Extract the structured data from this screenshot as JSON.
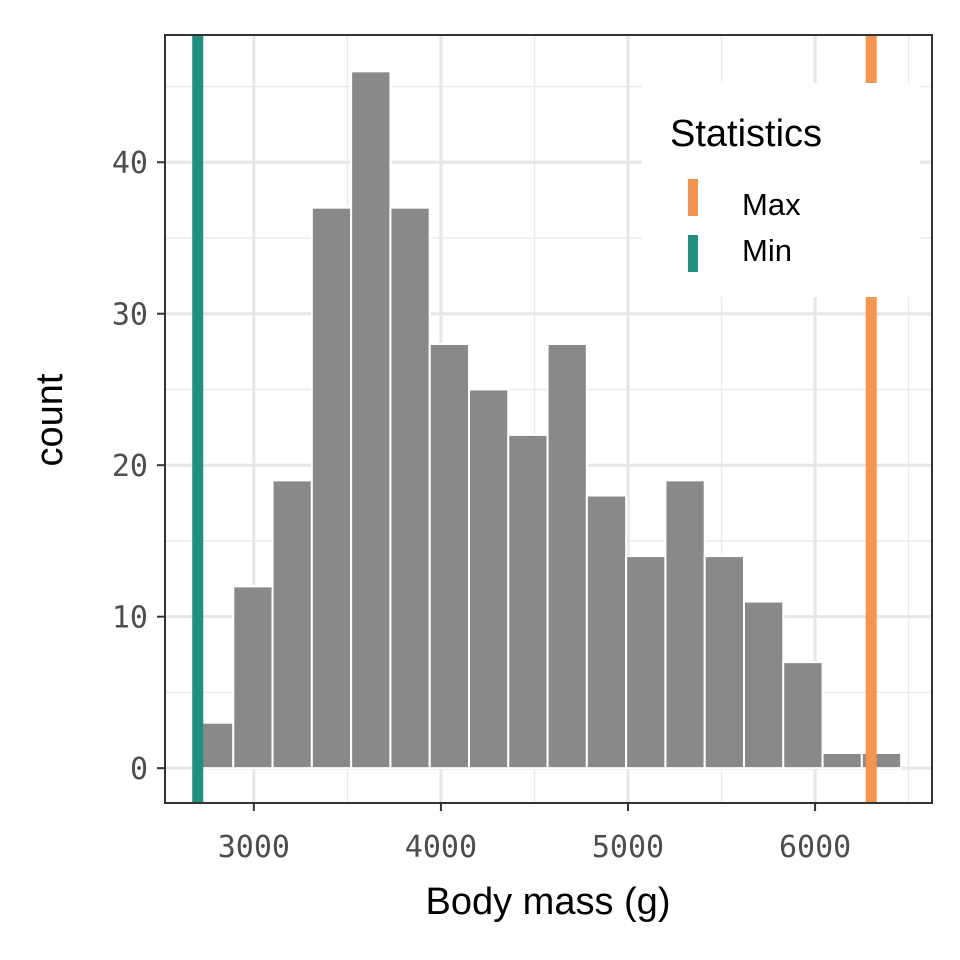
{
  "chart_data": {
    "type": "bar",
    "subtype": "histogram",
    "xlabel": "Body mass (g)",
    "ylabel": "count",
    "xlim": [
      2525,
      6625
    ],
    "ylim": [
      -2.3,
      48.4
    ],
    "xticks": [
      3000,
      4000,
      5000,
      6000
    ],
    "yticks": [
      0,
      10,
      20,
      30,
      40
    ],
    "grid": true,
    "bar_color": "#898989",
    "bins": [
      {
        "x0": 2680,
        "x1": 2890,
        "count": 3
      },
      {
        "x0": 2890,
        "x1": 3100,
        "count": 12
      },
      {
        "x0": 3100,
        "x1": 3310,
        "count": 19
      },
      {
        "x0": 3310,
        "x1": 3520,
        "count": 37
      },
      {
        "x0": 3520,
        "x1": 3730,
        "count": 46
      },
      {
        "x0": 3730,
        "x1": 3940,
        "count": 37
      },
      {
        "x0": 3940,
        "x1": 4150,
        "count": 28
      },
      {
        "x0": 4150,
        "x1": 4360,
        "count": 25
      },
      {
        "x0": 4360,
        "x1": 4570,
        "count": 22
      },
      {
        "x0": 4570,
        "x1": 4780,
        "count": 28
      },
      {
        "x0": 4780,
        "x1": 4990,
        "count": 18
      },
      {
        "x0": 4990,
        "x1": 5200,
        "count": 14
      },
      {
        "x0": 5200,
        "x1": 5410,
        "count": 19
      },
      {
        "x0": 5410,
        "x1": 5620,
        "count": 14
      },
      {
        "x0": 5620,
        "x1": 5830,
        "count": 11
      },
      {
        "x0": 5830,
        "x1": 6040,
        "count": 7
      },
      {
        "x0": 6040,
        "x1": 6250,
        "count": 1
      },
      {
        "x0": 6250,
        "x1": 6460,
        "count": 1
      }
    ],
    "vlines": [
      {
        "label": "Max",
        "value": 6300,
        "color": "#F4944F"
      },
      {
        "label": "Min",
        "value": 2700,
        "color": "#229080"
      }
    ],
    "legend": {
      "title": "Statistics",
      "position": "top-right",
      "entries": [
        {
          "label": "Max",
          "color": "#F4944F"
        },
        {
          "label": "Min",
          "color": "#229080"
        }
      ]
    }
  }
}
